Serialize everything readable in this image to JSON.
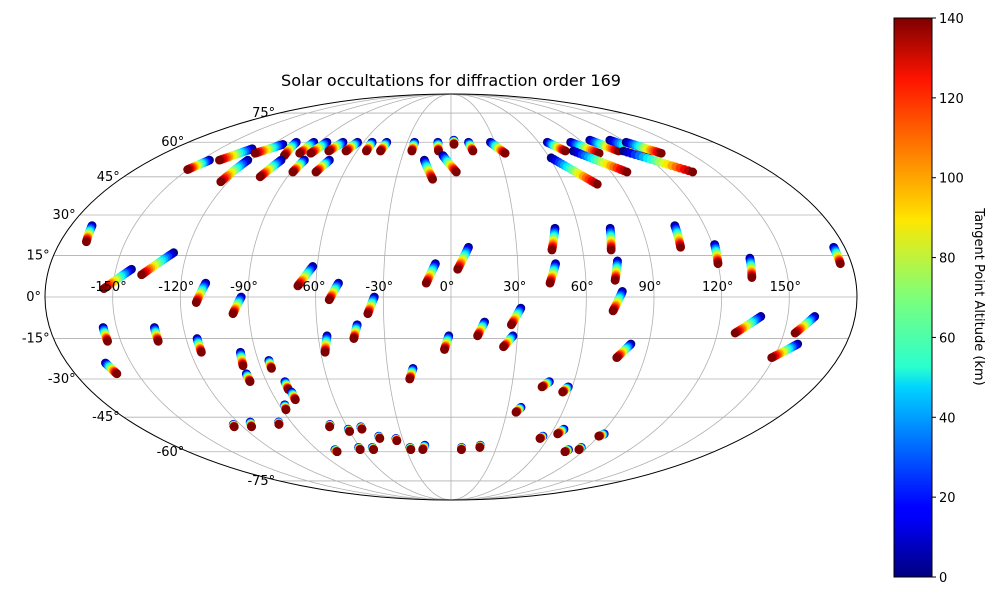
{
  "chart_data": {
    "type": "scatter",
    "projection": "mollweide",
    "title": "Solar occultations for diffraction order 169",
    "xlabel": "",
    "ylabel": "",
    "longitude_ticks": [
      {
        "value": -150,
        "label": "-150°"
      },
      {
        "value": -120,
        "label": "-120°"
      },
      {
        "value": -90,
        "label": "-90°"
      },
      {
        "value": -60,
        "label": "-60°"
      },
      {
        "value": -30,
        "label": "-30°"
      },
      {
        "value": 0,
        "label": "0°"
      },
      {
        "value": 30,
        "label": "30°"
      },
      {
        "value": 60,
        "label": "60°"
      },
      {
        "value": 90,
        "label": "90°"
      },
      {
        "value": 120,
        "label": "120°"
      },
      {
        "value": 150,
        "label": "150°"
      }
    ],
    "latitude_ticks": [
      {
        "value": -75,
        "label": "-75°"
      },
      {
        "value": -60,
        "label": "-60°"
      },
      {
        "value": -45,
        "label": "-45°"
      },
      {
        "value": -30,
        "label": "-30°"
      },
      {
        "value": -15,
        "label": "-15°"
      },
      {
        "value": 0,
        "label": "0°"
      },
      {
        "value": 15,
        "label": "15°"
      },
      {
        "value": 30,
        "label": "30°"
      },
      {
        "value": 45,
        "label": "45°"
      },
      {
        "value": 60,
        "label": "60°"
      },
      {
        "value": 75,
        "label": "75°"
      }
    ],
    "colorbar": {
      "label": "Tangent Point Altitude (km)",
      "min": 0,
      "max": 140,
      "colormap": "jet",
      "ticks": [
        {
          "value": 0,
          "label": "0"
        },
        {
          "value": 20,
          "label": "20"
        },
        {
          "value": 40,
          "label": "40"
        },
        {
          "value": 60,
          "label": "60"
        },
        {
          "value": 80,
          "label": "80"
        },
        {
          "value": 100,
          "label": "100"
        },
        {
          "value": 120,
          "label": "120"
        },
        {
          "value": 140,
          "label": "140"
        }
      ]
    },
    "altitude_range_km": [
      0,
      140
    ],
    "occultations": [
      {
        "lon_start": -170,
        "lat_start": 26,
        "lon_end": -168,
        "lat_end": 20
      },
      {
        "lon_start": -129,
        "lat_start": 57,
        "lon_end": -139,
        "lat_end": 52
      },
      {
        "lon_start": -113,
        "lat_start": 59,
        "lon_end": -123,
        "lat_end": 55
      },
      {
        "lon_start": -106,
        "lat_start": 60,
        "lon_end": -103,
        "lat_end": 54
      },
      {
        "lon_start": -94,
        "lat_start": 60,
        "lon_end": -95,
        "lat_end": 55
      },
      {
        "lon_start": -85,
        "lat_start": 60,
        "lon_end": -88,
        "lat_end": 55
      },
      {
        "lon_start": -74,
        "lat_start": 60,
        "lon_end": -78,
        "lat_end": 56
      },
      {
        "lon_start": -64,
        "lat_start": 60,
        "lon_end": -67,
        "lat_end": 56
      },
      {
        "lon_start": -54,
        "lat_start": 60,
        "lon_end": -54,
        "lat_end": 56
      },
      {
        "lon_start": -44,
        "lat_start": 60,
        "lon_end": -45,
        "lat_end": 56
      },
      {
        "lon_start": -25,
        "lat_start": 60,
        "lon_end": -25,
        "lat_end": 56
      },
      {
        "lon_start": -9,
        "lat_start": 60,
        "lon_end": -8,
        "lat_end": 56
      },
      {
        "lon_start": 2,
        "lat_start": 61,
        "lon_end": 2,
        "lat_end": 59
      },
      {
        "lon_start": 12,
        "lat_start": 60,
        "lon_end": 14,
        "lat_end": 56
      },
      {
        "lon_start": 27,
        "lat_start": 60,
        "lon_end": 34,
        "lat_end": 55
      },
      {
        "lon_start": 66,
        "lat_start": 60,
        "lon_end": 73,
        "lat_end": 56
      },
      {
        "lon_start": 82,
        "lat_start": 60,
        "lon_end": 93,
        "lat_end": 55
      },
      {
        "lon_start": 97,
        "lat_start": 61,
        "lon_end": 107,
        "lat_end": 56
      },
      {
        "lon_start": 111,
        "lat_start": 61,
        "lon_end": 124,
        "lat_end": 55
      },
      {
        "lon_start": 120,
        "lat_start": 60,
        "lon_end": 132,
        "lat_end": 55
      },
      {
        "lon_start": -145,
        "lat_start": 52,
        "lon_end": -150,
        "lat_end": 48
      },
      {
        "lon_start": -122,
        "lat_start": 52,
        "lon_end": -124,
        "lat_end": 43
      },
      {
        "lon_start": -102,
        "lat_start": 52,
        "lon_end": -105,
        "lat_end": 45
      },
      {
        "lon_start": -88,
        "lat_start": 52,
        "lon_end": -89,
        "lat_end": 47
      },
      {
        "lon_start": -73,
        "lat_start": 52,
        "lon_end": -76,
        "lat_end": 47
      },
      {
        "lon_start": -16,
        "lat_start": 52,
        "lon_end": -10,
        "lat_end": 44
      },
      {
        "lon_start": -5,
        "lat_start": 54,
        "lon_end": 3,
        "lat_end": 47
      },
      {
        "lon_start": 61,
        "lat_start": 53,
        "lon_end": 78,
        "lat_end": 42
      },
      {
        "lon_start": 78,
        "lat_start": 56,
        "lon_end": 99,
        "lat_end": 47
      },
      {
        "lon_start": 110,
        "lat_start": 56,
        "lon_end": 136,
        "lat_end": 47
      },
      {
        "lon_start": -143,
        "lat_start": 10,
        "lon_end": -154,
        "lat_end": 3
      },
      {
        "lon_start": -126,
        "lat_start": 16,
        "lon_end": -138,
        "lat_end": 8
      },
      {
        "lon_start": -109,
        "lat_start": 5,
        "lon_end": -113,
        "lat_end": -2
      },
      {
        "lon_start": -93,
        "lat_start": 0,
        "lon_end": -97,
        "lat_end": -6
      },
      {
        "lon_start": -62,
        "lat_start": 11,
        "lon_end": -68,
        "lat_end": 4
      },
      {
        "lon_start": -50,
        "lat_start": 5,
        "lon_end": -54,
        "lat_end": -1
      },
      {
        "lon_start": -34,
        "lat_start": 0,
        "lon_end": -37,
        "lat_end": -6
      },
      {
        "lon_start": -7,
        "lat_start": 12,
        "lon_end": -11,
        "lat_end": 5
      },
      {
        "lon_start": 8,
        "lat_start": 18,
        "lon_end": 3,
        "lat_end": 10
      },
      {
        "lon_start": 49,
        "lat_start": 25,
        "lon_end": 46,
        "lat_end": 17
      },
      {
        "lon_start": 47,
        "lat_start": 12,
        "lon_end": 44,
        "lat_end": 5
      },
      {
        "lon_start": 75,
        "lat_start": 25,
        "lon_end": 73,
        "lat_end": 17
      },
      {
        "lon_start": 75,
        "lat_start": 13,
        "lon_end": 73,
        "lat_end": 6
      },
      {
        "lon_start": 76,
        "lat_start": 2,
        "lon_end": 72,
        "lat_end": -5
      },
      {
        "lon_start": 106,
        "lat_start": 26,
        "lon_end": 105,
        "lat_end": 18
      },
      {
        "lon_start": 121,
        "lat_start": 19,
        "lon_end": 120,
        "lat_end": 12
      },
      {
        "lon_start": 135,
        "lat_start": 14,
        "lon_end": 134,
        "lat_end": 7
      },
      {
        "lon_start": 175,
        "lat_start": 18,
        "lon_end": 175,
        "lat_end": 12
      },
      {
        "lon_start": -156,
        "lat_start": -11,
        "lon_end": -156,
        "lat_end": -16
      },
      {
        "lon_start": -133,
        "lat_start": -11,
        "lon_end": -133,
        "lat_end": -16
      },
      {
        "lon_start": -115,
        "lat_start": -15,
        "lon_end": -115,
        "lat_end": -20
      },
      {
        "lon_start": -97,
        "lat_start": -20,
        "lon_end": -98,
        "lat_end": -25
      },
      {
        "lon_start": -56,
        "lat_start": -14,
        "lon_end": -58,
        "lat_end": -20
      },
      {
        "lon_start": -42,
        "lat_start": -10,
        "lon_end": -44,
        "lat_end": -15
      },
      {
        "lon_start": -18,
        "lat_start": -26,
        "lon_end": -20,
        "lat_end": -30
      },
      {
        "lon_start": -1,
        "lat_start": -14,
        "lon_end": -3,
        "lat_end": -19
      },
      {
        "lon_start": 15,
        "lat_start": -9,
        "lon_end": 12,
        "lat_end": -14
      },
      {
        "lon_start": 31,
        "lat_start": -4,
        "lon_end": 27,
        "lat_end": -10
      },
      {
        "lon_start": 28,
        "lat_start": -14,
        "lon_end": 24,
        "lat_end": -18
      },
      {
        "lon_start": 82,
        "lat_start": -17,
        "lon_end": 77,
        "lat_end": -22
      },
      {
        "lon_start": 138,
        "lat_start": -7,
        "lon_end": 128,
        "lat_end": -13
      },
      {
        "lon_start": 162,
        "lat_start": -7,
        "lon_end": 155,
        "lat_end": -13
      },
      {
        "lon_start": 158,
        "lat_start": -17,
        "lon_end": 149,
        "lat_end": -22
      },
      {
        "lon_start": -162,
        "lat_start": -24,
        "lon_end": -160,
        "lat_end": -28
      },
      {
        "lon_start": -98,
        "lat_start": -28,
        "lon_end": -98,
        "lat_end": -31
      },
      {
        "lon_start": -85,
        "lat_start": -23,
        "lon_end": -85,
        "lat_end": -26
      },
      {
        "lon_start": -81,
        "lat_start": -31,
        "lon_end": -81,
        "lat_end": -34
      },
      {
        "lon_start": -80,
        "lat_start": -35,
        "lon_end": -80,
        "lat_end": -38
      },
      {
        "lon_start": -87,
        "lat_start": -40,
        "lon_end": -88,
        "lat_end": -42
      },
      {
        "lon_start": 48,
        "lat_start": -31,
        "lon_end": 45,
        "lat_end": -33
      },
      {
        "lon_start": 58,
        "lat_start": -33,
        "lon_end": 56,
        "lat_end": -35
      },
      {
        "lon_start": 37,
        "lat_start": -41,
        "lon_end": 35,
        "lat_end": -43
      },
      {
        "lon_start": -113,
        "lat_start": -47,
        "lon_end": -115,
        "lat_end": -49
      },
      {
        "lon_start": -124,
        "lat_start": -48,
        "lon_end": -125,
        "lat_end": -49
      },
      {
        "lon_start": -97,
        "lat_start": -47,
        "lon_end": -98,
        "lat_end": -48
      },
      {
        "lon_start": -69,
        "lat_start": -48,
        "lon_end": -70,
        "lat_end": -49
      },
      {
        "lon_start": -60,
        "lat_start": -50,
        "lon_end": -60,
        "lat_end": -51
      },
      {
        "lon_start": -52,
        "lat_start": -49,
        "lon_end": -52,
        "lat_end": -50
      },
      {
        "lon_start": -44,
        "lat_start": -53,
        "lon_end": -44,
        "lat_end": -54
      },
      {
        "lon_start": -34,
        "lat_start": -54,
        "lon_end": -34,
        "lat_end": -55
      },
      {
        "lon_start": 56,
        "lat_start": -53,
        "lon_end": 55,
        "lat_end": -54
      },
      {
        "lon_start": 66,
        "lat_start": -50,
        "lon_end": 64,
        "lat_end": -52
      },
      {
        "lon_start": 92,
        "lat_start": -52,
        "lon_end": 90,
        "lat_end": -53
      },
      {
        "lon_start": -78,
        "lat_start": -59,
        "lon_end": -78,
        "lat_end": -60
      },
      {
        "lon_start": -61,
        "lat_start": -58,
        "lon_end": -61,
        "lat_end": -59
      },
      {
        "lon_start": -52,
        "lat_start": -58,
        "lon_end": -52,
        "lat_end": -59
      },
      {
        "lon_start": -27,
        "lat_start": -58,
        "lon_end": -27,
        "lat_end": -59
      },
      {
        "lon_start": -17,
        "lat_start": -57,
        "lon_end": -19,
        "lat_end": -59
      },
      {
        "lon_start": 7,
        "lat_start": -58,
        "lon_end": 7,
        "lat_end": -59
      },
      {
        "lon_start": 19,
        "lat_start": -57,
        "lon_end": 19,
        "lat_end": -58
      },
      {
        "lon_start": 79,
        "lat_start": -59,
        "lon_end": 78,
        "lat_end": -60
      },
      {
        "lon_start": 86,
        "lat_start": -58,
        "lon_end": 86,
        "lat_end": -59
      }
    ]
  }
}
